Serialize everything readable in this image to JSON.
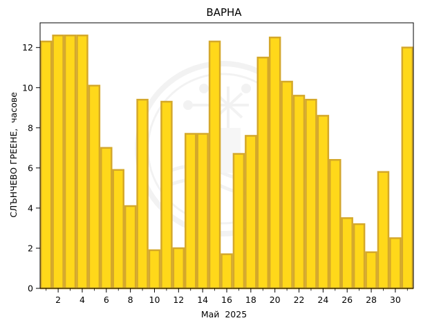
{
  "chart_data": {
    "type": "bar",
    "title": "ВАРНА",
    "xlabel": "Май  2025",
    "ylabel": "СЛЪНЧЕВО ГРЕЕНЕ,  часове",
    "x": [
      1,
      2,
      3,
      4,
      5,
      6,
      7,
      8,
      9,
      10,
      11,
      12,
      13,
      14,
      15,
      16,
      17,
      18,
      19,
      20,
      21,
      22,
      23,
      24,
      25,
      26,
      27,
      28,
      29,
      30,
      31
    ],
    "values": [
      12.3,
      12.6,
      12.6,
      12.6,
      10.1,
      7.0,
      5.9,
      4.1,
      9.4,
      1.9,
      9.3,
      2.0,
      7.7,
      7.7,
      12.3,
      1.7,
      6.7,
      7.6,
      11.5,
      12.5,
      10.3,
      9.6,
      9.4,
      8.6,
      6.4,
      3.5,
      3.2,
      1.8,
      5.8,
      2.5,
      12.0
    ],
    "xticks": [
      2,
      4,
      6,
      8,
      10,
      12,
      14,
      16,
      18,
      20,
      22,
      24,
      26,
      28,
      30
    ],
    "yticks": [
      0,
      2,
      4,
      6,
      8,
      10,
      12
    ],
    "xlim": [
      0.5,
      31.5
    ],
    "ylim": [
      0,
      13.23
    ],
    "grid": false,
    "colors": {
      "bar_fill": "#FFD81A",
      "bar_edge": "#D4A82A"
    }
  }
}
